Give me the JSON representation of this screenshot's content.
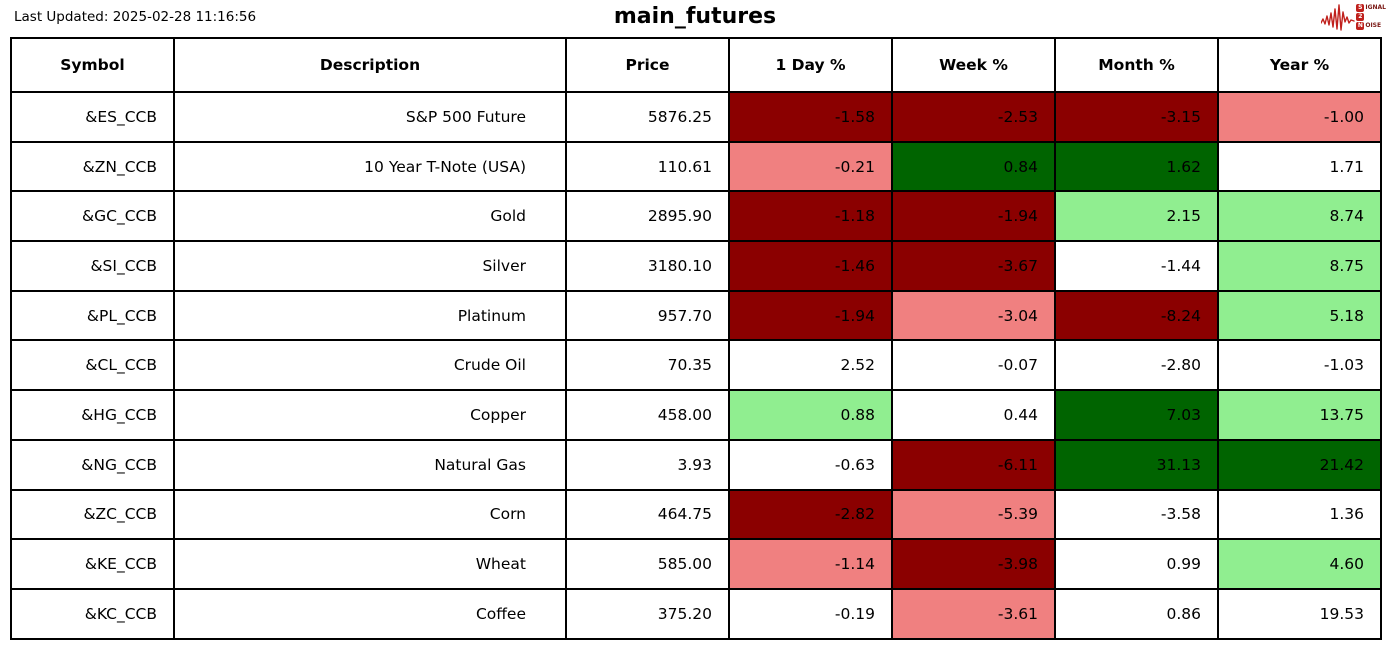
{
  "page": {
    "last_updated": "Last Updated: 2025-02-28 11:16:56",
    "title": "main_futures"
  },
  "logo": {
    "lines": [
      {
        "boxed": "S",
        "rest": "IGNAL"
      },
      {
        "boxed": "2",
        "rest": ""
      },
      {
        "boxed": "N",
        "rest": "OISE"
      }
    ],
    "accent_color": "#c0201c"
  },
  "colors": {
    "dark_red": "#8b0000",
    "light_red": "#f08080",
    "dark_green": "#006400",
    "light_green": "#90ee90",
    "none": "#ffffff"
  },
  "table": {
    "headers": [
      "Symbol",
      "Description",
      "Price",
      "1 Day %",
      "Week %",
      "Month %",
      "Year %"
    ],
    "rows": [
      {
        "symbol": "&ES_CCB",
        "description": "S&P 500 Future",
        "price": "5876.25",
        "pcts": [
          {
            "v": "-1.58",
            "c": "dark_red"
          },
          {
            "v": "-2.53",
            "c": "dark_red"
          },
          {
            "v": "-3.15",
            "c": "dark_red"
          },
          {
            "v": "-1.00",
            "c": "light_red"
          }
        ]
      },
      {
        "symbol": "&ZN_CCB",
        "description": "10 Year T-Note (USA)",
        "price": "110.61",
        "pcts": [
          {
            "v": "-0.21",
            "c": "light_red"
          },
          {
            "v": "0.84",
            "c": "dark_green"
          },
          {
            "v": "1.62",
            "c": "dark_green"
          },
          {
            "v": "1.71",
            "c": "none"
          }
        ]
      },
      {
        "symbol": "&GC_CCB",
        "description": "Gold",
        "price": "2895.90",
        "pcts": [
          {
            "v": "-1.18",
            "c": "dark_red"
          },
          {
            "v": "-1.94",
            "c": "dark_red"
          },
          {
            "v": "2.15",
            "c": "light_green"
          },
          {
            "v": "8.74",
            "c": "light_green"
          }
        ]
      },
      {
        "symbol": "&SI_CCB",
        "description": "Silver",
        "price": "3180.10",
        "pcts": [
          {
            "v": "-1.46",
            "c": "dark_red"
          },
          {
            "v": "-3.67",
            "c": "dark_red"
          },
          {
            "v": "-1.44",
            "c": "none"
          },
          {
            "v": "8.75",
            "c": "light_green"
          }
        ]
      },
      {
        "symbol": "&PL_CCB",
        "description": "Platinum",
        "price": "957.70",
        "pcts": [
          {
            "v": "-1.94",
            "c": "dark_red"
          },
          {
            "v": "-3.04",
            "c": "light_red"
          },
          {
            "v": "-8.24",
            "c": "dark_red"
          },
          {
            "v": "5.18",
            "c": "light_green"
          }
        ]
      },
      {
        "symbol": "&CL_CCB",
        "description": "Crude Oil",
        "price": "70.35",
        "pcts": [
          {
            "v": "2.52",
            "c": "none"
          },
          {
            "v": "-0.07",
            "c": "none"
          },
          {
            "v": "-2.80",
            "c": "none"
          },
          {
            "v": "-1.03",
            "c": "none"
          }
        ]
      },
      {
        "symbol": "&HG_CCB",
        "description": "Copper",
        "price": "458.00",
        "pcts": [
          {
            "v": "0.88",
            "c": "light_green"
          },
          {
            "v": "0.44",
            "c": "none"
          },
          {
            "v": "7.03",
            "c": "dark_green"
          },
          {
            "v": "13.75",
            "c": "light_green"
          }
        ]
      },
      {
        "symbol": "&NG_CCB",
        "description": "Natural Gas",
        "price": "3.93",
        "pcts": [
          {
            "v": "-0.63",
            "c": "none"
          },
          {
            "v": "-6.11",
            "c": "dark_red"
          },
          {
            "v": "31.13",
            "c": "dark_green"
          },
          {
            "v": "21.42",
            "c": "dark_green"
          }
        ]
      },
      {
        "symbol": "&ZC_CCB",
        "description": "Corn",
        "price": "464.75",
        "pcts": [
          {
            "v": "-2.82",
            "c": "dark_red"
          },
          {
            "v": "-5.39",
            "c": "light_red"
          },
          {
            "v": "-3.58",
            "c": "none"
          },
          {
            "v": "1.36",
            "c": "none"
          }
        ]
      },
      {
        "symbol": "&KE_CCB",
        "description": "Wheat",
        "price": "585.00",
        "pcts": [
          {
            "v": "-1.14",
            "c": "light_red"
          },
          {
            "v": "-3.98",
            "c": "dark_red"
          },
          {
            "v": "0.99",
            "c": "none"
          },
          {
            "v": "4.60",
            "c": "light_green"
          }
        ]
      },
      {
        "symbol": "&KC_CCB",
        "description": "Coffee",
        "price": "375.20",
        "pcts": [
          {
            "v": "-0.19",
            "c": "none"
          },
          {
            "v": "-3.61",
            "c": "light_red"
          },
          {
            "v": "0.86",
            "c": "none"
          },
          {
            "v": "19.53",
            "c": "none"
          }
        ]
      }
    ]
  },
  "chart_data": {
    "type": "table",
    "title": "main_futures",
    "last_updated": "2025-02-28 11:16:56",
    "columns": [
      "Symbol",
      "Description",
      "Price",
      "1 Day %",
      "Week %",
      "Month %",
      "Year %"
    ],
    "rows": [
      [
        "&ES_CCB",
        "S&P 500 Future",
        5876.25,
        -1.58,
        -2.53,
        -3.15,
        -1.0
      ],
      [
        "&ZN_CCB",
        "10 Year T-Note (USA)",
        110.61,
        -0.21,
        0.84,
        1.62,
        1.71
      ],
      [
        "&GC_CCB",
        "Gold",
        2895.9,
        -1.18,
        -1.94,
        2.15,
        8.74
      ],
      [
        "&SI_CCB",
        "Silver",
        3180.1,
        -1.46,
        -3.67,
        -1.44,
        8.75
      ],
      [
        "&PL_CCB",
        "Platinum",
        957.7,
        -1.94,
        -3.04,
        -8.24,
        5.18
      ],
      [
        "&CL_CCB",
        "Crude Oil",
        70.35,
        2.52,
        -0.07,
        -2.8,
        -1.03
      ],
      [
        "&HG_CCB",
        "Copper",
        458.0,
        0.88,
        0.44,
        7.03,
        13.75
      ],
      [
        "&NG_CCB",
        "Natural Gas",
        3.93,
        -0.63,
        -6.11,
        31.13,
        21.42
      ],
      [
        "&ZC_CCB",
        "Corn",
        464.75,
        -2.82,
        -5.39,
        -3.58,
        1.36
      ],
      [
        "&KE_CCB",
        "Wheat",
        585.0,
        -1.14,
        -3.98,
        0.99,
        4.6
      ],
      [
        "&KC_CCB",
        "Coffee",
        375.2,
        -0.19,
        -3.61,
        0.86,
        19.53
      ]
    ]
  }
}
